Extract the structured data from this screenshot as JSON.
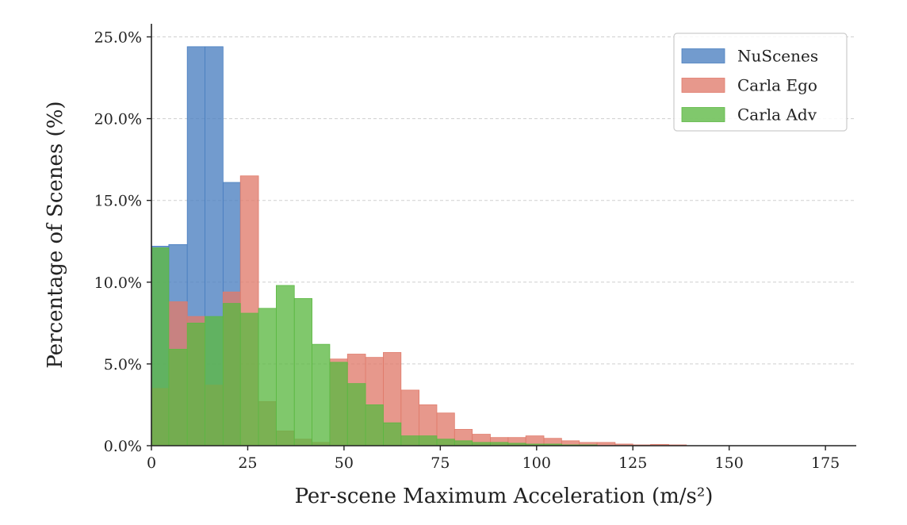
{
  "chart_data": {
    "type": "bar",
    "subtype": "overlapping-histogram",
    "title": "",
    "xlabel": "Per-scene Maximum Acceleration (m/s²)",
    "ylabel": "Percentage of Scenes (%)",
    "xlim": [
      0,
      183
    ],
    "ylim": [
      0,
      25.8
    ],
    "xticks": [
      0,
      25,
      50,
      75,
      100,
      125,
      150,
      175
    ],
    "xtick_labels": [
      "0",
      "25",
      "50",
      "75",
      "100",
      "125",
      "150",
      "175"
    ],
    "yticks": [
      0,
      5,
      10,
      15,
      20,
      25
    ],
    "ytick_labels": [
      "0.0%",
      "5.0%",
      "10.0%",
      "15.0%",
      "20.0%",
      "25.0%"
    ],
    "grid": "y-dashed",
    "legend_position": "top-right",
    "series": [
      {
        "name": "NuScenes",
        "color": "#4a7fc0",
        "bins": [
          {
            "x0": 0,
            "x1": 4.5,
            "value": 12.2
          },
          {
            "x0": 4.5,
            "x1": 9.3,
            "value": 12.3
          },
          {
            "x0": 9.3,
            "x1": 13.9,
            "value": 24.4
          },
          {
            "x0": 13.9,
            "x1": 18.6,
            "value": 24.4
          },
          {
            "x0": 18.6,
            "x1": 23.1,
            "value": 16.1
          }
        ]
      },
      {
        "name": "Carla Ego",
        "color": "#e07b6b",
        "bins": [
          {
            "x0": 0,
            "x1": 4.5,
            "value": 3.5
          },
          {
            "x0": 4.5,
            "x1": 9.3,
            "value": 8.8
          },
          {
            "x0": 9.3,
            "x1": 13.9,
            "value": 7.9
          },
          {
            "x0": 13.9,
            "x1": 18.6,
            "value": 3.7
          },
          {
            "x0": 18.6,
            "x1": 23.1,
            "value": 9.4
          },
          {
            "x0": 23.1,
            "x1": 27.8,
            "value": 16.5
          },
          {
            "x0": 27.8,
            "x1": 32.4,
            "value": 2.7
          },
          {
            "x0": 32.4,
            "x1": 37.1,
            "value": 0.9
          },
          {
            "x0": 37.1,
            "x1": 41.7,
            "value": 0.4
          },
          {
            "x0": 41.7,
            "x1": 46.3,
            "value": 0.2
          },
          {
            "x0": 46.3,
            "x1": 50.9,
            "value": 5.3
          },
          {
            "x0": 50.9,
            "x1": 55.6,
            "value": 5.6
          },
          {
            "x0": 55.6,
            "x1": 60.2,
            "value": 5.4
          },
          {
            "x0": 60.2,
            "x1": 64.8,
            "value": 5.7
          },
          {
            "x0": 64.8,
            "x1": 69.5,
            "value": 3.4
          },
          {
            "x0": 69.5,
            "x1": 74.1,
            "value": 2.5
          },
          {
            "x0": 74.1,
            "x1": 78.7,
            "value": 2.0
          },
          {
            "x0": 78.7,
            "x1": 83.3,
            "value": 1.0
          },
          {
            "x0": 83.3,
            "x1": 88.0,
            "value": 0.7
          },
          {
            "x0": 88.0,
            "x1": 92.6,
            "value": 0.5
          },
          {
            "x0": 92.6,
            "x1": 97.2,
            "value": 0.5
          },
          {
            "x0": 97.2,
            "x1": 101.9,
            "value": 0.6
          },
          {
            "x0": 101.9,
            "x1": 106.5,
            "value": 0.45
          },
          {
            "x0": 106.5,
            "x1": 111.1,
            "value": 0.3
          },
          {
            "x0": 111.1,
            "x1": 115.7,
            "value": 0.2
          },
          {
            "x0": 115.7,
            "x1": 120.4,
            "value": 0.2
          },
          {
            "x0": 120.4,
            "x1": 125.0,
            "value": 0.1
          },
          {
            "x0": 125.0,
            "x1": 129.6,
            "value": 0.05
          },
          {
            "x0": 129.6,
            "x1": 134.3,
            "value": 0.08
          },
          {
            "x0": 134.3,
            "x1": 138.9,
            "value": 0.05
          }
        ]
      },
      {
        "name": "Carla Adv",
        "color": "#5cb843",
        "bins": [
          {
            "x0": 0,
            "x1": 4.5,
            "value": 12.1
          },
          {
            "x0": 4.5,
            "x1": 9.3,
            "value": 5.9
          },
          {
            "x0": 9.3,
            "x1": 13.9,
            "value": 7.5
          },
          {
            "x0": 13.9,
            "x1": 18.6,
            "value": 7.9
          },
          {
            "x0": 18.6,
            "x1": 23.1,
            "value": 8.7
          },
          {
            "x0": 23.1,
            "x1": 27.8,
            "value": 8.1
          },
          {
            "x0": 27.8,
            "x1": 32.4,
            "value": 8.4
          },
          {
            "x0": 32.4,
            "x1": 37.1,
            "value": 9.8
          },
          {
            "x0": 37.1,
            "x1": 41.7,
            "value": 9.0
          },
          {
            "x0": 41.7,
            "x1": 46.3,
            "value": 6.2
          },
          {
            "x0": 46.3,
            "x1": 50.9,
            "value": 5.1
          },
          {
            "x0": 50.9,
            "x1": 55.6,
            "value": 3.8
          },
          {
            "x0": 55.6,
            "x1": 60.2,
            "value": 2.5
          },
          {
            "x0": 60.2,
            "x1": 64.8,
            "value": 1.4
          },
          {
            "x0": 64.8,
            "x1": 69.5,
            "value": 0.6
          },
          {
            "x0": 69.5,
            "x1": 74.1,
            "value": 0.6
          },
          {
            "x0": 74.1,
            "x1": 78.7,
            "value": 0.4
          },
          {
            "x0": 78.7,
            "x1": 83.3,
            "value": 0.3
          },
          {
            "x0": 83.3,
            "x1": 88.0,
            "value": 0.2
          },
          {
            "x0": 88.0,
            "x1": 92.6,
            "value": 0.2
          },
          {
            "x0": 92.6,
            "x1": 97.2,
            "value": 0.15
          },
          {
            "x0": 97.2,
            "x1": 101.9,
            "value": 0.1
          },
          {
            "x0": 101.9,
            "x1": 106.5,
            "value": 0.1
          },
          {
            "x0": 106.5,
            "x1": 111.1,
            "value": 0.05
          },
          {
            "x0": 111.1,
            "x1": 115.7,
            "value": 0.05
          }
        ]
      }
    ]
  }
}
